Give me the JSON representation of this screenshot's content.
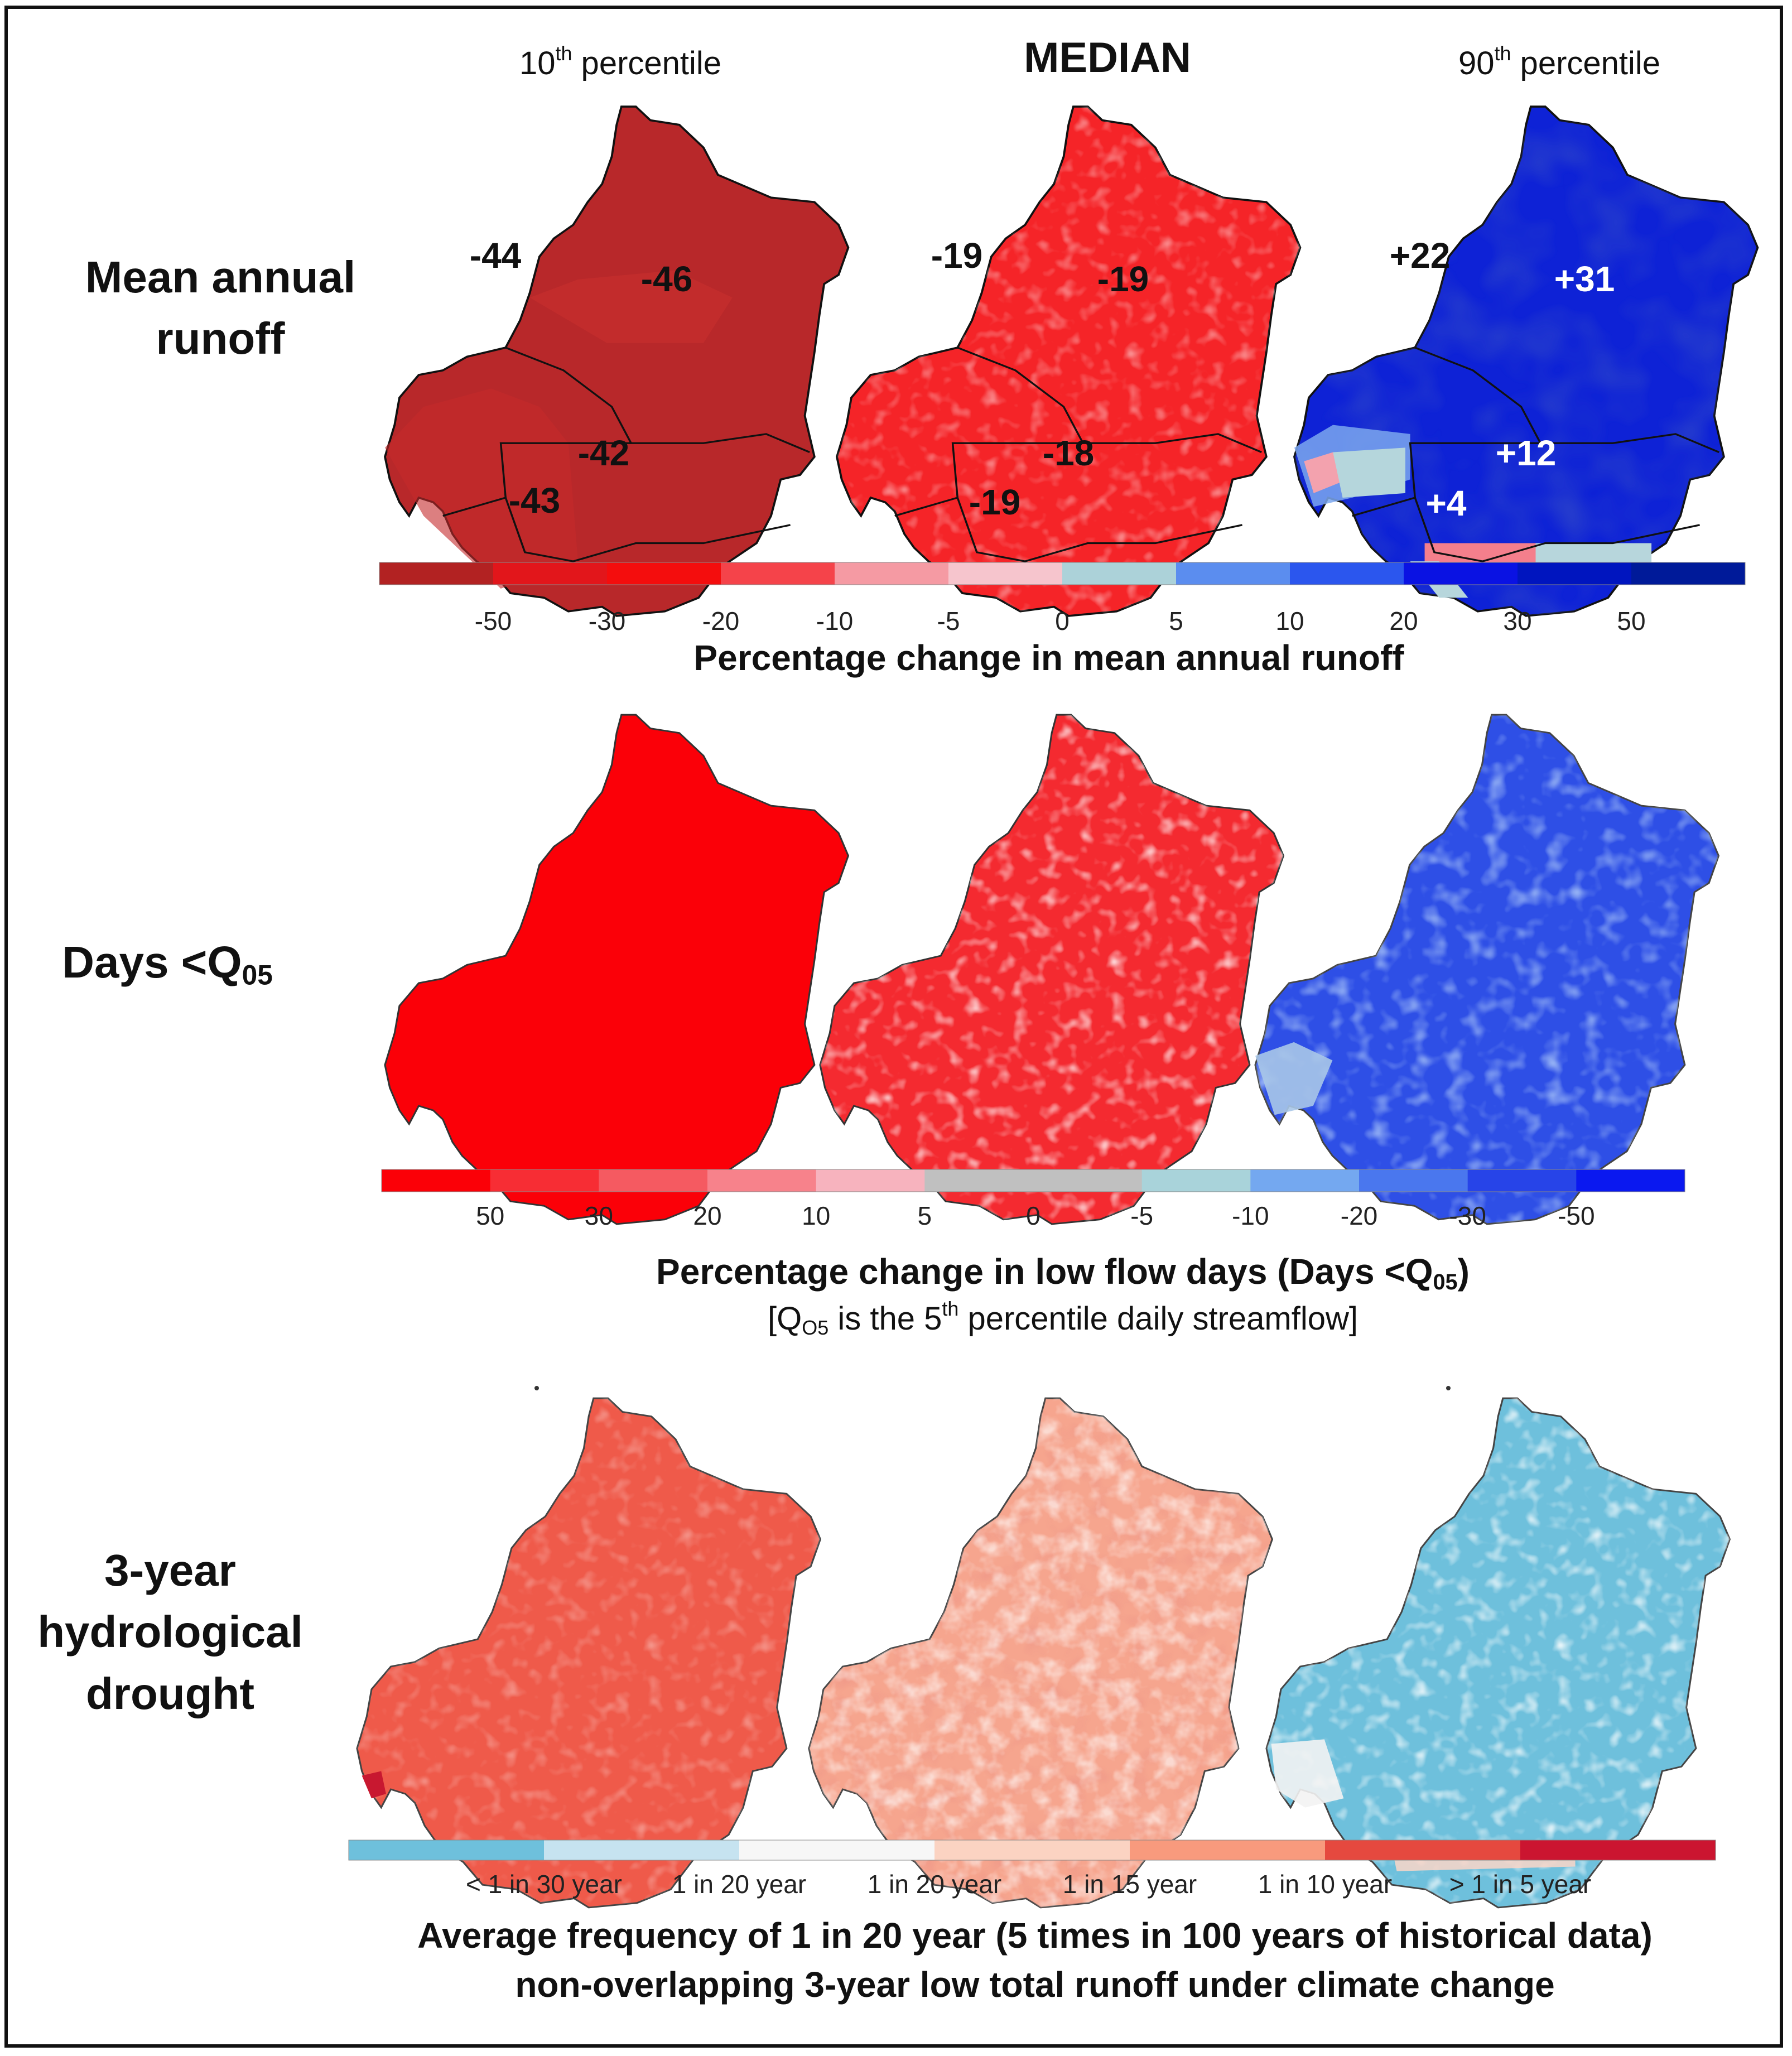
{
  "columns": [
    {
      "label": "10",
      "sup": "th",
      "rest": " percentile"
    },
    {
      "label": "MEDIAN"
    },
    {
      "label": "90",
      "sup": "th",
      "rest": " percentile"
    }
  ],
  "rows": [
    {
      "label_line1": "Mean annual",
      "label_line2": "runoff"
    },
    {
      "label": "Days <Q",
      "sub": "05"
    },
    {
      "label_line1": "3-year",
      "label_line2": "hydrological",
      "label_line3": "drought"
    }
  ],
  "runoff_values": {
    "p10": [
      "-44",
      "-46",
      "-42",
      "-43"
    ],
    "median": [
      "-19",
      "-19",
      "-18",
      "-19"
    ],
    "p90": [
      "+22",
      "+31",
      "+12",
      "+4"
    ]
  },
  "legend1": {
    "ticks": [
      "-50",
      "-30",
      "-20",
      "-10",
      "-5",
      "0",
      "5",
      "10",
      "20",
      "30",
      "50"
    ],
    "colors": [
      "#b22222",
      "#e2161b",
      "#f40d0d",
      "#f5434a",
      "#f59aa3",
      "#f6c5cd",
      "#acd2d9",
      "#5b8def",
      "#2b56ee",
      "#0a12e3",
      "#0015bf",
      "#001a99"
    ],
    "caption": "Percentage change in mean annual runoff"
  },
  "legend2": {
    "ticks": [
      "50",
      "30",
      "20",
      "10",
      "5",
      "0",
      "-5",
      "-10",
      "-20",
      "-30",
      "-50"
    ],
    "colors": [
      "#fb0007",
      "#f72d34",
      "#f55a61",
      "#f7828b",
      "#f7b3be",
      "#c0c0c0",
      "#c0c0c0",
      "#a9d3da",
      "#74a8f0",
      "#4a77ee",
      "#2744e8",
      "#0a18f0"
    ],
    "caption_main": "Percentage change in low flow days (Days <Q",
    "caption_sub": "05",
    "caption_end": ")",
    "subcaption_a": "[Q",
    "subcaption_sub": "O5",
    "subcaption_b": " is the 5",
    "subcaption_sup": "th",
    "subcaption_c": " percentile daily streamflow]"
  },
  "legend3": {
    "ticks": [
      "< 1 in 30 year",
      "1 in 20 year",
      "1 in 20 year",
      "1 in 15 year",
      "1 in 10 year",
      "> 1 in 5 year"
    ],
    "colors": [
      "#6ec0dc",
      "#c6e3f0",
      "#f7f7f7",
      "#fbd3c2",
      "#f89a7d",
      "#e5493f",
      "#cb1530"
    ],
    "caption_line1": "Average frequency of 1 in 20 year (5 times in 100 years of historical data)",
    "caption_line2": "non-overlapping  3-year low total runoff under climate change"
  },
  "map_colors": {
    "p10_runoff": "#b8282a",
    "median_runoff": "#f52428",
    "p90_runoff": "#0e22d6",
    "p10_days": "#fb0008",
    "median_days": "#f42a30",
    "p90_days": "#2e4fe6",
    "p10_drought": "#ef5a4a",
    "median_drought": "#f6a58e",
    "p90_drought": "#6ec0dc"
  }
}
